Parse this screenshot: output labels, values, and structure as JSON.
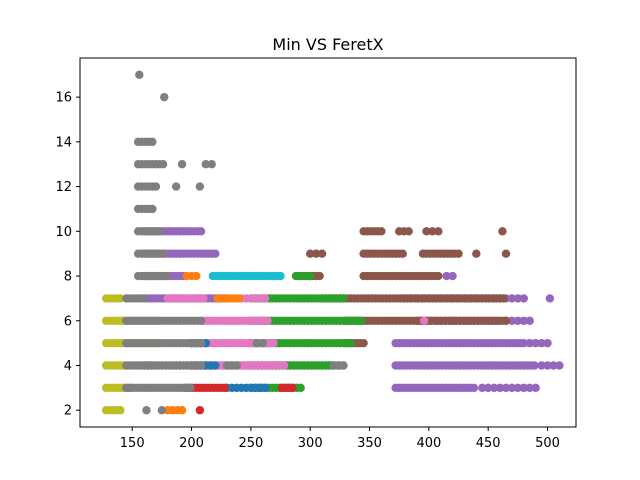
{
  "chart_data": {
    "type": "scatter",
    "title": "Min VS FeretX",
    "xlabel": "",
    "ylabel": "",
    "xlim": [
      106,
      524
    ],
    "ylim": [
      1.25,
      17.75
    ],
    "xticks": [
      150,
      200,
      250,
      300,
      350,
      400,
      450,
      500
    ],
    "yticks": [
      2,
      4,
      6,
      8,
      10,
      12,
      14,
      16
    ],
    "grid": false,
    "legend": "none",
    "bands": [
      {
        "color": "#bcbd22",
        "y": 2,
        "x0": 128,
        "x1": 142,
        "step": 3
      },
      {
        "color": "#bcbd22",
        "y": 3,
        "x0": 128,
        "x1": 150,
        "step": 3
      },
      {
        "color": "#bcbd22",
        "y": 4,
        "x0": 128,
        "x1": 165,
        "step": 3
      },
      {
        "color": "#bcbd22",
        "y": 5,
        "x0": 128,
        "x1": 175,
        "step": 3
      },
      {
        "color": "#bcbd22",
        "y": 6,
        "x0": 128,
        "x1": 175,
        "step": 3
      },
      {
        "color": "#bcbd22",
        "y": 7,
        "x0": 128,
        "x1": 142,
        "step": 3
      },
      {
        "color": "#9467bd",
        "y": 3,
        "x0": 372,
        "x1": 440,
        "step": 3
      },
      {
        "color": "#9467bd",
        "y": 3,
        "x0": 445,
        "x1": 490,
        "step": 5
      },
      {
        "color": "#9467bd",
        "y": 4,
        "x0": 160,
        "x1": 330,
        "step": 3
      },
      {
        "color": "#9467bd",
        "y": 4,
        "x0": 372,
        "x1": 490,
        "step": 3
      },
      {
        "color": "#9467bd",
        "y": 4,
        "x0": 495,
        "x1": 510,
        "step": 5
      },
      {
        "color": "#9467bd",
        "y": 5,
        "x0": 372,
        "x1": 480,
        "step": 3
      },
      {
        "color": "#9467bd",
        "y": 5,
        "x0": 485,
        "x1": 500,
        "step": 5
      },
      {
        "color": "#9467bd",
        "y": 6,
        "x0": 390,
        "x1": 460,
        "step": 4
      },
      {
        "color": "#9467bd",
        "y": 6,
        "x0": 465,
        "x1": 485,
        "step": 5
      },
      {
        "color": "#9467bd",
        "y": 7,
        "x0": 160,
        "x1": 230,
        "step": 3
      },
      {
        "color": "#9467bd",
        "y": 7,
        "x0": 380,
        "x1": 480,
        "step": 5
      },
      {
        "color": "#9467bd",
        "y": 7,
        "x0": 502,
        "x1": 502,
        "step": 5
      },
      {
        "color": "#9467bd",
        "y": 8,
        "x0": 160,
        "x1": 195,
        "step": 3
      },
      {
        "color": "#9467bd",
        "y": 8,
        "x0": 415,
        "x1": 420,
        "step": 5
      },
      {
        "color": "#9467bd",
        "y": 9,
        "x0": 160,
        "x1": 220,
        "step": 3
      },
      {
        "color": "#9467bd",
        "y": 10,
        "x0": 160,
        "x1": 210,
        "step": 3
      },
      {
        "color": "#8c564b",
        "y": 5,
        "x0": 330,
        "x1": 345,
        "step": 3
      },
      {
        "color": "#8c564b",
        "y": 6,
        "x0": 330,
        "x1": 465,
        "step": 3
      },
      {
        "color": "#8c564b",
        "y": 7,
        "x0": 310,
        "x1": 465,
        "step": 3
      },
      {
        "color": "#8c564b",
        "y": 8,
        "x0": 290,
        "x1": 310,
        "step": 3
      },
      {
        "color": "#8c564b",
        "y": 8,
        "x0": 345,
        "x1": 410,
        "step": 3
      },
      {
        "color": "#8c564b",
        "y": 9,
        "x0": 300,
        "x1": 310,
        "step": 5
      },
      {
        "color": "#8c564b",
        "y": 9,
        "x0": 345,
        "x1": 380,
        "step": 3
      },
      {
        "color": "#8c564b",
        "y": 9,
        "x0": 395,
        "x1": 425,
        "step": 3
      },
      {
        "color": "#8c564b",
        "y": 9,
        "x0": 440,
        "x1": 440,
        "step": 5
      },
      {
        "color": "#8c564b",
        "y": 9,
        "x0": 465,
        "x1": 465,
        "step": 5
      },
      {
        "color": "#8c564b",
        "y": 10,
        "x0": 345,
        "x1": 360,
        "step": 3
      },
      {
        "color": "#8c564b",
        "y": 10,
        "x0": 375,
        "x1": 385,
        "step": 4
      },
      {
        "color": "#8c564b",
        "y": 10,
        "x0": 398,
        "x1": 410,
        "step": 5
      },
      {
        "color": "#8c564b",
        "y": 10,
        "x0": 462,
        "x1": 462,
        "step": 5
      },
      {
        "color": "#2ca02c",
        "y": 3,
        "x0": 250,
        "x1": 292,
        "step": 3
      },
      {
        "color": "#2ca02c",
        "y": 4,
        "x0": 250,
        "x1": 320,
        "step": 3
      },
      {
        "color": "#2ca02c",
        "y": 5,
        "x0": 250,
        "x1": 335,
        "step": 3
      },
      {
        "color": "#2ca02c",
        "y": 6,
        "x0": 250,
        "x1": 345,
        "step": 3
      },
      {
        "color": "#2ca02c",
        "y": 7,
        "x0": 250,
        "x1": 330,
        "step": 3
      },
      {
        "color": "#2ca02c",
        "y": 8,
        "x0": 288,
        "x1": 300,
        "step": 4
      },
      {
        "color": "#e377c2",
        "y": 4,
        "x0": 200,
        "x1": 280,
        "step": 3
      },
      {
        "color": "#e377c2",
        "y": 5,
        "x0": 200,
        "x1": 270,
        "step": 3
      },
      {
        "color": "#e377c2",
        "y": 6,
        "x0": 210,
        "x1": 265,
        "step": 3
      },
      {
        "color": "#e377c2",
        "y": 7,
        "x0": 180,
        "x1": 210,
        "step": 3
      },
      {
        "color": "#e377c2",
        "y": 7,
        "x0": 242,
        "x1": 262,
        "step": 4
      },
      {
        "color": "#e377c2",
        "y": 6,
        "x0": 396,
        "x1": 396,
        "step": 5
      },
      {
        "color": "#1f77b4",
        "y": 3,
        "x0": 230,
        "x1": 265,
        "step": 4
      },
      {
        "color": "#1f77b4",
        "y": 4,
        "x0": 200,
        "x1": 220,
        "step": 4
      },
      {
        "color": "#1f77b4",
        "y": 5,
        "x0": 200,
        "x1": 215,
        "step": 4
      },
      {
        "color": "#d62728",
        "y": 2,
        "x0": 207,
        "x1": 207,
        "step": 5
      },
      {
        "color": "#d62728",
        "y": 3,
        "x0": 195,
        "x1": 230,
        "step": 3
      },
      {
        "color": "#d62728",
        "y": 3,
        "x0": 276,
        "x1": 285,
        "step": 3
      },
      {
        "color": "#ff7f0e",
        "y": 2,
        "x0": 180,
        "x1": 192,
        "step": 4
      },
      {
        "color": "#ff7f0e",
        "y": 7,
        "x0": 222,
        "x1": 240,
        "step": 3
      },
      {
        "color": "#ff7f0e",
        "y": 8,
        "x0": 196,
        "x1": 206,
        "step": 4
      },
      {
        "color": "#17becf",
        "y": 8,
        "x0": 218,
        "x1": 275,
        "step": 3
      },
      {
        "color": "#7f7f7f",
        "y": 2,
        "x0": 162,
        "x1": 162,
        "step": 5
      },
      {
        "color": "#7f7f7f",
        "y": 2,
        "x0": 175,
        "x1": 175,
        "step": 5
      },
      {
        "color": "#7f7f7f",
        "y": 3,
        "x0": 145,
        "x1": 200,
        "step": 3
      },
      {
        "color": "#7f7f7f",
        "y": 4,
        "x0": 145,
        "x1": 210,
        "step": 3
      },
      {
        "color": "#7f7f7f",
        "y": 4,
        "x0": 230,
        "x1": 240,
        "step": 4
      },
      {
        "color": "#7f7f7f",
        "y": 4,
        "x0": 320,
        "x1": 328,
        "step": 4
      },
      {
        "color": "#7f7f7f",
        "y": 5,
        "x0": 145,
        "x1": 210,
        "step": 3
      },
      {
        "color": "#7f7f7f",
        "y": 5,
        "x0": 255,
        "x1": 260,
        "step": 5
      },
      {
        "color": "#7f7f7f",
        "y": 6,
        "x0": 145,
        "x1": 210,
        "step": 3
      },
      {
        "color": "#7f7f7f",
        "y": 7,
        "x0": 145,
        "x1": 160,
        "step": 3
      },
      {
        "color": "#7f7f7f",
        "y": 8,
        "x0": 155,
        "x1": 180,
        "step": 3
      },
      {
        "color": "#7f7f7f",
        "y": 9,
        "x0": 155,
        "x1": 178,
        "step": 3
      },
      {
        "color": "#7f7f7f",
        "y": 10,
        "x0": 155,
        "x1": 175,
        "step": 3
      },
      {
        "color": "#7f7f7f",
        "y": 11,
        "x0": 155,
        "x1": 168,
        "step": 3
      },
      {
        "color": "#7f7f7f",
        "y": 12,
        "x0": 155,
        "x1": 171,
        "step": 3
      },
      {
        "color": "#7f7f7f",
        "y": 12,
        "x0": 187,
        "x1": 187,
        "step": 5
      },
      {
        "color": "#7f7f7f",
        "y": 12,
        "x0": 207,
        "x1": 207,
        "step": 5
      },
      {
        "color": "#7f7f7f",
        "y": 13,
        "x0": 155,
        "x1": 176,
        "step": 3
      },
      {
        "color": "#7f7f7f",
        "y": 13,
        "x0": 192,
        "x1": 192,
        "step": 5
      },
      {
        "color": "#7f7f7f",
        "y": 13,
        "x0": 212,
        "x1": 218,
        "step": 5
      },
      {
        "color": "#7f7f7f",
        "y": 14,
        "x0": 155,
        "x1": 167,
        "step": 3
      },
      {
        "color": "#7f7f7f",
        "y": 16,
        "x0": 177,
        "x1": 177,
        "step": 5
      },
      {
        "color": "#7f7f7f",
        "y": 17,
        "x0": 156,
        "x1": 156,
        "step": 5
      }
    ]
  }
}
